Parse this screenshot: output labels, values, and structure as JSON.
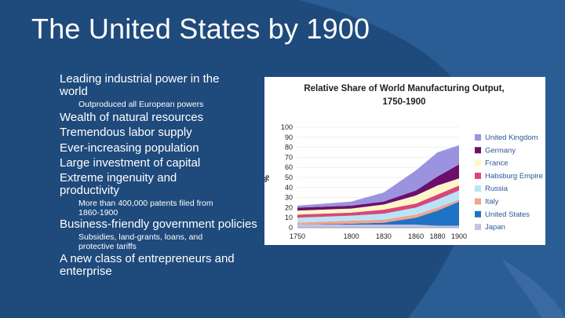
{
  "slide": {
    "title": "The United States by 1900",
    "marker": "",
    "bullets": [
      {
        "level": 1,
        "lines": [
          "Leading industrial power in the",
          "world"
        ]
      },
      {
        "level": 2,
        "lines": [
          "Outproduced all European powers"
        ]
      },
      {
        "level": 1,
        "lines": [
          "Wealth of natural resources"
        ]
      },
      {
        "level": 1,
        "lines": [
          "Tremendous labor supply"
        ]
      },
      {
        "level": 1,
        "lines": [
          "Ever-increasing population"
        ]
      },
      {
        "level": 1,
        "lines": [
          "Large investment of capital"
        ]
      },
      {
        "level": 1,
        "lines": [
          "Extreme ingenuity and",
          "productivity"
        ]
      },
      {
        "level": 2,
        "lines": [
          "More than 400,000 patents filed from",
          "1860-1900"
        ]
      },
      {
        "level": 1,
        "lines": [
          "Business-friendly government policies"
        ]
      },
      {
        "level": 2,
        "lines": [
          "Subsidies, land-grants, loans, and",
          "protective tariffs"
        ]
      },
      {
        "level": 1,
        "lines": [
          "A new class of entrepreneurs and",
          "enterprise"
        ]
      }
    ]
  },
  "colors": {
    "background": "#1f4a7c",
    "shape": "#2a5d93",
    "accent_band": "#3b6aa3"
  },
  "chart_data": {
    "type": "area",
    "title_lines": [
      "Relative Share of World Manufacturing Output,",
      "1750-1900"
    ],
    "ylabel": "%",
    "x": [
      1750,
      1800,
      1830,
      1860,
      1880,
      1900
    ],
    "x_ticks": [
      1750,
      1800,
      1830,
      1860,
      1880,
      1900
    ],
    "ylim": [
      0,
      100
    ],
    "y_ticks": [
      0,
      10,
      20,
      30,
      40,
      50,
      60,
      70,
      80,
      90,
      100
    ],
    "stacked": true,
    "legend_position": "right",
    "series": [
      {
        "name": "Japan",
        "color": "#c7c3e8",
        "values": [
          3,
          3,
          3,
          3,
          2,
          2
        ]
      },
      {
        "name": "United States",
        "color": "#1f73c4",
        "values": [
          0,
          1,
          2,
          7,
          15,
          24
        ]
      },
      {
        "name": "Italy",
        "color": "#f2a38c",
        "values": [
          2,
          3,
          3,
          3,
          3,
          2
        ]
      },
      {
        "name": "Russia",
        "color": "#b9e4f7",
        "values": [
          5,
          5,
          6,
          7,
          8,
          9
        ]
      },
      {
        "name": "Habsburg Empire",
        "color": "#d8477a",
        "values": [
          3,
          3,
          4,
          4,
          5,
          5
        ]
      },
      {
        "name": "France",
        "color": "#fff6c8",
        "values": [
          4,
          4,
          5,
          8,
          9,
          7
        ]
      },
      {
        "name": "Germany",
        "color": "#6b0f6b",
        "values": [
          3,
          3,
          3,
          5,
          9,
          14
        ]
      },
      {
        "name": "United Kingdom",
        "color": "#9b93e0",
        "values": [
          2,
          4,
          9,
          20,
          24,
          19
        ]
      }
    ]
  }
}
